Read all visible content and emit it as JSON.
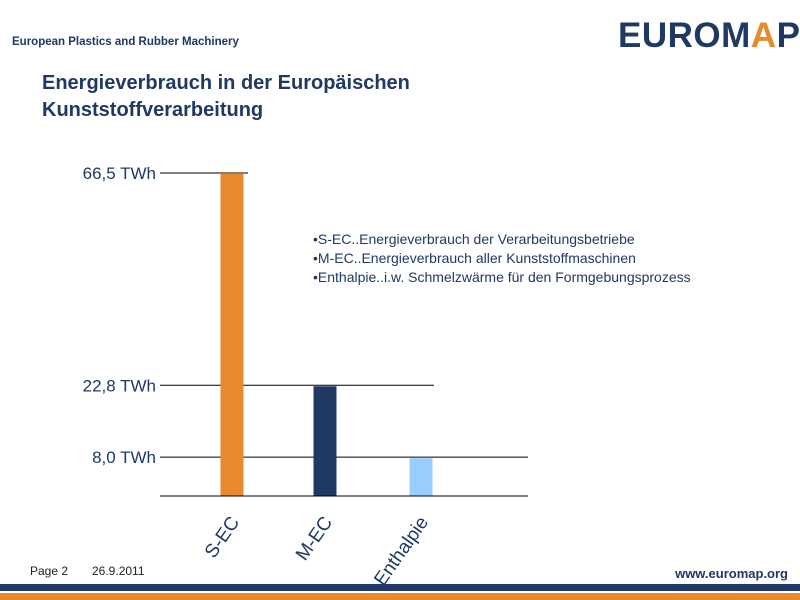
{
  "header": {
    "org_name": "European Plastics and Rubber Machinery",
    "logo_prefix": "EUROM",
    "logo_a": "A",
    "logo_suffix": "P"
  },
  "title_line1": "Energieverbrauch in der Europäischen",
  "title_line2": "Kunststoffverarbeitung",
  "notes": [
    "•S-EC..Energieverbrauch der Verarbeitungsbetriebe",
    "•M-EC..Energieverbrauch aller Kunststoffmaschinen",
    "•Enthalpie..i.w. Schmelzwärme für den Formgebungsprozess"
  ],
  "chart_data": {
    "type": "bar",
    "categories": [
      "S-EC",
      "M-EC",
      "Enthalpie"
    ],
    "values": [
      66.5,
      22.8,
      8.0
    ],
    "value_labels": [
      "66,5 TWh",
      "22,8 TWh",
      "8,0 TWh"
    ],
    "colors": [
      "#e8892e",
      "#1f3864",
      "#99ccff"
    ],
    "ylim": [
      0,
      66.5
    ],
    "title": "",
    "xlabel": "",
    "ylabel": "",
    "grid": false,
    "legend": "none"
  },
  "footer": {
    "page": "Page 2",
    "date": "26.9.2011",
    "url": "www.euromap.org"
  }
}
